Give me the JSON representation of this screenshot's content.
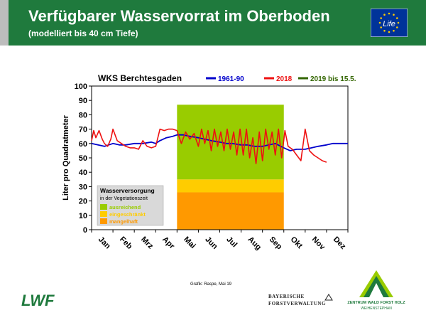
{
  "header": {
    "title": "Verfügbarer Wasservorrat im Oberboden",
    "subtitle": "(modelliert bis 40 cm Tiefe)",
    "eu_logo_text": "Life"
  },
  "footer": {
    "credit": "Grafik: Raspe, Mai 19",
    "lwf_logo_text": "LWF",
    "bfv_line1": "BAYERISCHE",
    "bfv_line2": "FORSTVERWALTUNG",
    "zwfh_name": "ZENTRUM WALD FORST HOLZ",
    "zwfh_sub": "WEIHENSTEPHAN"
  },
  "colors": {
    "header_green": "#1f7a3d",
    "ausreichend": "#99cc00",
    "eingeschraenkt": "#ffcc00",
    "mangelhaft": "#ff9900",
    "series_1961_90": "#0000cc",
    "series_2018": "#ee1111",
    "series_2019": "#336600"
  },
  "chart_data": {
    "type": "line",
    "title": "WKS Berchtesgaden",
    "ylabel": "Liter pro Quadratmeter",
    "xlabel": "",
    "ylim": [
      0,
      100
    ],
    "yticks": [
      0,
      10,
      20,
      30,
      40,
      50,
      60,
      70,
      80,
      90,
      100
    ],
    "months": [
      "Jan",
      "Feb",
      "Mrz",
      "Apr",
      "Mai",
      "Jun",
      "Jul",
      "Aug",
      "Sep",
      "Okt",
      "Nov",
      "Dez"
    ],
    "grid": false,
    "legend_position": "top-right",
    "legend": {
      "title": "Wasserversorgung",
      "subtitle": "in der Vegetationszeit",
      "items": [
        {
          "label": "ausreichend",
          "color": "#99cc00"
        },
        {
          "label": "eingeschränkt",
          "color": "#ffcc00"
        },
        {
          "label": "mangelhaft",
          "color": "#ff9900"
        }
      ]
    },
    "zones": {
      "x_start_month": 4.0,
      "x_end_month": 9.0,
      "mangelhaft": [
        0,
        26
      ],
      "eingeschraenkt": [
        26,
        35
      ],
      "ausreichend": [
        35,
        87
      ]
    },
    "series": [
      {
        "name": "1961-90",
        "color": "#0000cc",
        "x_month": [
          0.0,
          0.3,
          0.6,
          1.0,
          1.3,
          1.6,
          2.0,
          2.4,
          2.8,
          3.0,
          3.2,
          3.5,
          3.8,
          4.0,
          4.3,
          4.6,
          5.0,
          5.3,
          5.6,
          6.0,
          6.3,
          6.6,
          7.0,
          7.3,
          7.6,
          8.0,
          8.3,
          8.6,
          9.0,
          9.3,
          9.6,
          10.0,
          10.3,
          10.6,
          11.0,
          11.3,
          11.6,
          12.0
        ],
        "values": [
          60,
          59,
          58,
          60,
          59,
          59,
          60,
          60,
          61,
          60,
          62,
          64,
          65,
          66,
          66,
          65,
          64,
          63,
          62,
          61,
          60,
          60,
          59,
          59,
          58,
          58,
          59,
          60,
          57,
          55,
          56,
          56,
          57,
          58,
          59,
          60,
          60,
          60
        ]
      },
      {
        "name": "2018",
        "color": "#ee1111",
        "x_month": [
          0.0,
          0.1,
          0.2,
          0.35,
          0.5,
          0.6,
          0.75,
          0.9,
          1.0,
          1.2,
          1.4,
          1.6,
          1.8,
          2.0,
          2.2,
          2.4,
          2.5,
          2.6,
          2.8,
          3.0,
          3.2,
          3.4,
          3.6,
          3.8,
          4.0,
          4.2,
          4.4,
          4.6,
          4.8,
          5.0,
          5.15,
          5.3,
          5.45,
          5.6,
          5.75,
          5.9,
          6.05,
          6.2,
          6.35,
          6.5,
          6.65,
          6.8,
          6.95,
          7.1,
          7.25,
          7.4,
          7.55,
          7.7,
          7.85,
          8.0,
          8.15,
          8.3,
          8.45,
          8.6,
          8.75,
          8.9,
          9.05,
          9.2,
          9.4,
          9.6,
          9.8,
          10.0,
          10.2,
          10.4,
          10.6,
          10.8,
          11.0
        ],
        "values": [
          62,
          69,
          64,
          69,
          63,
          60,
          58,
          63,
          70,
          62,
          60,
          58,
          57,
          57,
          56,
          62,
          60,
          58,
          57,
          58,
          70,
          69,
          70,
          70,
          69,
          60,
          68,
          63,
          67,
          58,
          70,
          60,
          69,
          55,
          70,
          58,
          68,
          55,
          70,
          56,
          68,
          52,
          70,
          52,
          70,
          50,
          64,
          46,
          68,
          48,
          70,
          56,
          68,
          52,
          70,
          50,
          69,
          58,
          56,
          52,
          48,
          70,
          55,
          52,
          50,
          48,
          47
        ]
      },
      {
        "name": "2019 bis 15.5.",
        "color": "#336600",
        "x_month": [],
        "values": []
      }
    ]
  }
}
